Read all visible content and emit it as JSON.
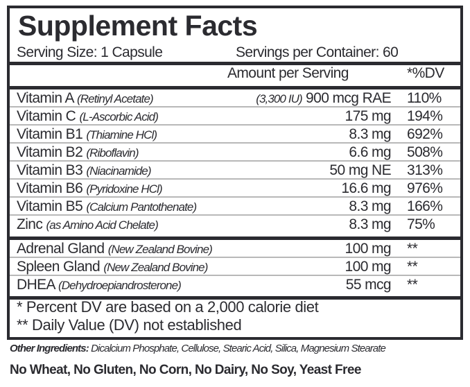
{
  "title": "Supplement Facts",
  "serving_size": "Serving Size: 1 Capsule",
  "servings_per_container": "Servings per Container: 60",
  "header": {
    "amount": "Amount per Serving",
    "dv": "*%DV"
  },
  "vitamins": [
    {
      "name": "Vitamin A",
      "source": "(Retinyl Acetate)",
      "amount_note": "(3,300 IU)",
      "amount": "900 mcg RAE",
      "dv": "110%"
    },
    {
      "name": "Vitamin C",
      "source": "(L-Ascorbic Acid)",
      "amount": "175 mg",
      "dv": "194%"
    },
    {
      "name": "Vitamin B1",
      "source": "(Thiamine HCl)",
      "amount": "8.3 mg",
      "dv": "692%"
    },
    {
      "name": "Vitamin B2",
      "source": "(Riboflavin)",
      "amount": "6.6 mg",
      "dv": "508%"
    },
    {
      "name": "Vitamin B3",
      "source": "(Niacinamide)",
      "amount": "50 mg NE",
      "dv": "313%"
    },
    {
      "name": "Vitamin B6",
      "source": "(Pyridoxine HCl)",
      "amount": "16.6 mg",
      "dv": "976%"
    },
    {
      "name": "Vitamin B5",
      "source": "(Calcium Pantothenate)",
      "amount": "8.3 mg",
      "dv": "166%"
    },
    {
      "name": "Zinc",
      "source": "(as Amino Acid Chelate)",
      "amount": "8.3 mg",
      "dv": "75%"
    }
  ],
  "others": [
    {
      "name": "Adrenal Gland",
      "source": "(New Zealand Bovine)",
      "amount": "100 mg",
      "dv": "**"
    },
    {
      "name": "Spleen Gland",
      "source": "(New Zealand Bovine)",
      "amount": "100 mg",
      "dv": "**"
    },
    {
      "name": "DHEA",
      "source": "(Dehydroepiandrosterone)",
      "amount": "55 mcg",
      "dv": "**"
    }
  ],
  "footnotes": [
    "* Percent DV are based on a 2,000 calorie diet",
    "** Daily Value (DV) not established"
  ],
  "other_ingredients_label": "Other Ingredients:",
  "other_ingredients": "Dicalcium Phosphate, Cellulose, Stearic Acid, Silica, Magnesium Stearate",
  "allergen_statement": "No Wheat, No Gluten, No Corn, No Dairy, No Soy, Yeast Free"
}
